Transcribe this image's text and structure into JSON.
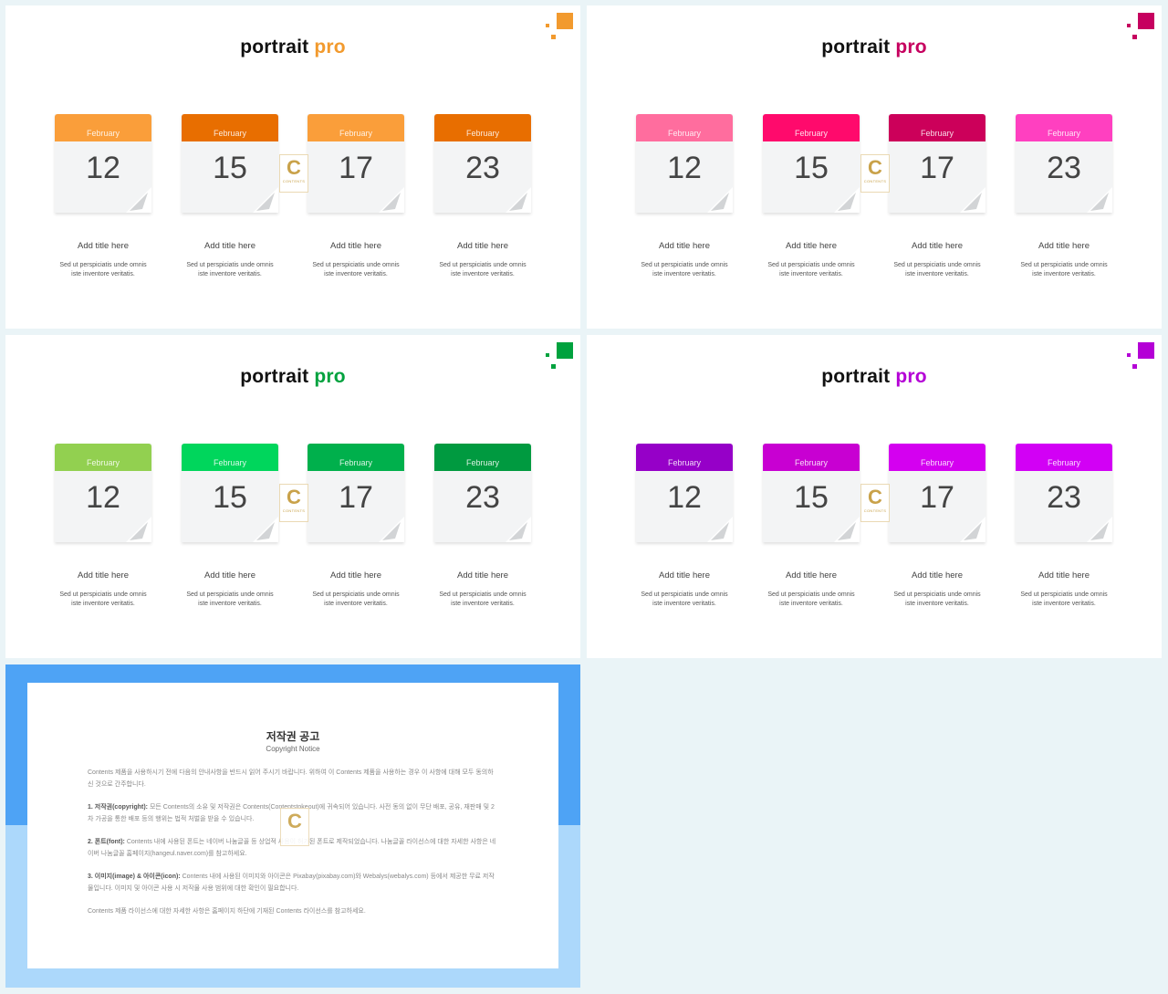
{
  "slides": [
    {
      "title_main": "portrait",
      "title_accent": "pro",
      "accent_color": "#f29a2e",
      "cards": [
        {
          "month": "February",
          "day": "12",
          "header_color": "#fa9e3a",
          "title": "Add title here",
          "desc1": "Sed ut perspiciatis unde omnis",
          "desc2": "iste inventore veritatis."
        },
        {
          "month": "February",
          "day": "15",
          "header_color": "#e86e00",
          "title": "Add title here",
          "desc1": "Sed ut perspiciatis unde omnis",
          "desc2": "iste inventore veritatis."
        },
        {
          "month": "February",
          "day": "17",
          "header_color": "#fa9e3a",
          "title": "Add title here",
          "desc1": "Sed ut perspiciatis unde omnis",
          "desc2": "iste inventore veritatis."
        },
        {
          "month": "February",
          "day": "23",
          "header_color": "#e86e00",
          "title": "Add title here",
          "desc1": "Sed ut perspiciatis unde omnis",
          "desc2": "iste inventore veritatis."
        }
      ]
    },
    {
      "title_main": "portrait",
      "title_accent": "pro",
      "accent_color": "#c6005f",
      "cards": [
        {
          "month": "February",
          "day": "12",
          "header_color": "#ff6d9e",
          "title": "Add title here",
          "desc1": "Sed ut perspiciatis unde omnis",
          "desc2": "iste inventore veritatis."
        },
        {
          "month": "February",
          "day": "15",
          "header_color": "#ff0a6c",
          "title": "Add title here",
          "desc1": "Sed ut perspiciatis unde omnis",
          "desc2": "iste inventore veritatis."
        },
        {
          "month": "February",
          "day": "17",
          "header_color": "#cc005a",
          "title": "Add title here",
          "desc1": "Sed ut perspiciatis unde omnis",
          "desc2": "iste inventore veritatis."
        },
        {
          "month": "February",
          "day": "23",
          "header_color": "#ff40c0",
          "title": "Add title here",
          "desc1": "Sed ut perspiciatis unde omnis",
          "desc2": "iste inventore veritatis."
        }
      ]
    },
    {
      "title_main": "portrait",
      "title_accent": "pro",
      "accent_color": "#00a23e",
      "cards": [
        {
          "month": "February",
          "day": "12",
          "header_color": "#92d050",
          "title": "Add title here",
          "desc1": "Sed ut perspiciatis unde omnis",
          "desc2": "iste inventore veritatis."
        },
        {
          "month": "February",
          "day": "15",
          "header_color": "#00d65c",
          "title": "Add title here",
          "desc1": "Sed ut perspiciatis unde omnis",
          "desc2": "iste inventore veritatis."
        },
        {
          "month": "February",
          "day": "17",
          "header_color": "#00b04c",
          "title": "Add title here",
          "desc1": "Sed ut perspiciatis unde omnis",
          "desc2": "iste inventore veritatis."
        },
        {
          "month": "February",
          "day": "23",
          "header_color": "#009a40",
          "title": "Add title here",
          "desc1": "Sed ut perspiciatis unde omnis",
          "desc2": "iste inventore veritatis."
        }
      ]
    },
    {
      "title_main": "portrait",
      "title_accent": "pro",
      "accent_color": "#b400d6",
      "cards": [
        {
          "month": "February",
          "day": "12",
          "header_color": "#9600c8",
          "title": "Add title here",
          "desc1": "Sed ut perspiciatis unde omnis",
          "desc2": "iste inventore veritatis."
        },
        {
          "month": "February",
          "day": "15",
          "header_color": "#c800d2",
          "title": "Add title here",
          "desc1": "Sed ut perspiciatis unde omnis",
          "desc2": "iste inventore veritatis."
        },
        {
          "month": "February",
          "day": "17",
          "header_color": "#d400f0",
          "title": "Add title here",
          "desc1": "Sed ut perspiciatis unde omnis",
          "desc2": "iste inventore veritatis."
        },
        {
          "month": "February",
          "day": "23",
          "header_color": "#d200f5",
          "title": "Add title here",
          "desc1": "Sed ut perspiciatis unde omnis",
          "desc2": "iste inventore veritatis."
        }
      ]
    }
  ],
  "watermark": {
    "letter": "C",
    "text": "CONTENTS"
  },
  "copyright": {
    "title": "저작권 공고",
    "subtitle": "Copyright Notice",
    "intro": "Contents 제품을 사용하시기 전에 다음의 안내사항을 반드시 읽어 주시기 바랍니다. 위하여 이 Contents 제품을 사용하는 경우 이 사항에 대해 모두 동의하신 것으로 간주합니다.",
    "s1_head": "1. 저작권(copyright):",
    "s1_body": "모든 Contents의 소유 및 저작권은 Contents(Contentstokeout)에 귀속되어 있습니다. 사전 동의 없이 무단 배포, 공유, 재판매 및 2차 가공을 통한 배포 등의 행위는 법적 처벌을 받을 수 있습니다.",
    "s2_head": "2. 폰트(font):",
    "s2_body": "Contents 내에 사용된 폰트는 네이버 나눔글꼴 등 상업적 사용이 허가된 폰트로 제작되었습니다. 나눔글꼴 라이선스에 대한 자세한 사항은 네이버 나눔글꼴 홈페이지(hangeul.naver.com)를 참고하세요.",
    "s3_head": "3. 이미지(image) & 아이콘(icon):",
    "s3_body": "Contents 내에 사용된 이미지와 아이콘은 Pixabay(pixabay.com)와 Webalys(webalys.com) 등에서 제공한 무료 저작물입니다. 이미지 및 아이콘 사용 시 저작물 사용 범위에 대한 확인이 필요합니다.",
    "outro": "Contents 제품 라이선스에 대한 자세한 사항은 홈페이지 하단에 기재된 Contents 라이선스를 참고하세요."
  }
}
